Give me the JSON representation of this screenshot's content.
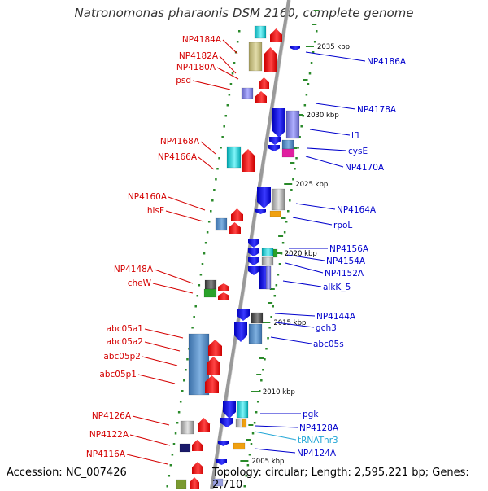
{
  "title": "Natronomonas pharaonis DSM 2160, complete genome",
  "footer": {
    "accession": "Accession: NC_007426",
    "summary": "Topology: circular; Length: 2,595,221 bp; Genes: 2,710"
  },
  "colors": {
    "backbone": "#9a9a9a",
    "tick": "#2a8a2a",
    "left_label": "#d40000",
    "right_label": "#0000cc",
    "rna_label": "#22a6d6"
  },
  "kbp_marks": [
    "2035 kbp",
    "2030 kbp",
    "2025 kbp",
    "2020 kbp",
    "2015 kbp",
    "2010 kbp",
    "2005 kbp"
  ],
  "left_labels": [
    "NP4184A",
    "NP4182A",
    "NP4180A",
    "psd",
    "NP4168A",
    "NP4166A",
    "NP4160A",
    "hisF",
    "NP4148A",
    "cheW",
    "abc05a1",
    "abc05a2",
    "abc05p2",
    "abc05p1",
    "NP4126A",
    "NP4122A",
    "NP4116A"
  ],
  "right_labels": [
    "NP4186A",
    "NP4178A",
    "lfl",
    "cysE",
    "NP4170A",
    "NP4164A",
    "rpoL",
    "NP4156A",
    "NP4154A",
    "NP4152A",
    "alkK_5",
    "NP4144A",
    "gch3",
    "abc05s",
    "pgk",
    "NP4128A",
    "tRNAThr3",
    "NP4124A"
  ]
}
